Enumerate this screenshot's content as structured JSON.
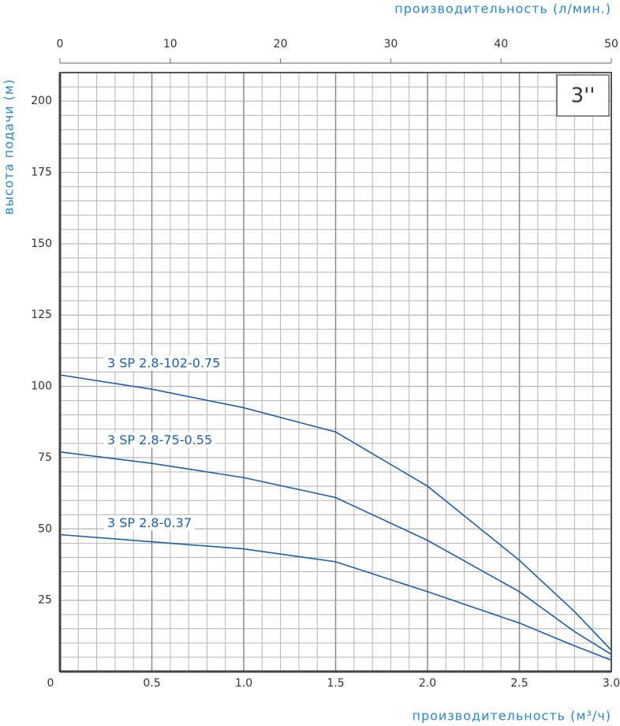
{
  "chart_data": {
    "type": "line",
    "x_title": "производительность (м³/ч)",
    "x2_title": "производительность (л/мин.)",
    "y_title": "высота подачи (м)",
    "badge": "3''",
    "x": [
      0,
      0.5,
      1.0,
      1.5,
      2.0,
      2.5,
      2.8,
      3.0
    ],
    "series": [
      {
        "name": "3 SP 2.8-102-0.75",
        "color": "#1f5fa8",
        "values": [
          104,
          99,
          92.5,
          84,
          65,
          39,
          21,
          7.5
        ]
      },
      {
        "name": "3 SP 2.8-75-0.55",
        "color": "#1f5fa8",
        "values": [
          77,
          73,
          68,
          61,
          46,
          28,
          14,
          6
        ]
      },
      {
        "name": "3 SP 2.8-0.37",
        "color": "#1f5fa8",
        "values": [
          48,
          45.5,
          43,
          38.5,
          28,
          17,
          9,
          4
        ]
      }
    ],
    "xlim": [
      0,
      3
    ],
    "xticks": [
      0,
      0.5,
      {
        "value": 1,
        "label": "1.0"
      },
      1.5,
      {
        "value": 2,
        "label": "2.0"
      },
      2.5,
      {
        "value": 3,
        "label": "3.0"
      }
    ],
    "x2lim": [
      0,
      50
    ],
    "x2ticks": [
      0,
      10,
      20,
      30,
      40,
      50
    ],
    "ylim": [
      0,
      210
    ],
    "yticks": [
      25,
      50,
      75,
      100,
      125,
      150,
      175,
      200
    ],
    "grid": true
  }
}
